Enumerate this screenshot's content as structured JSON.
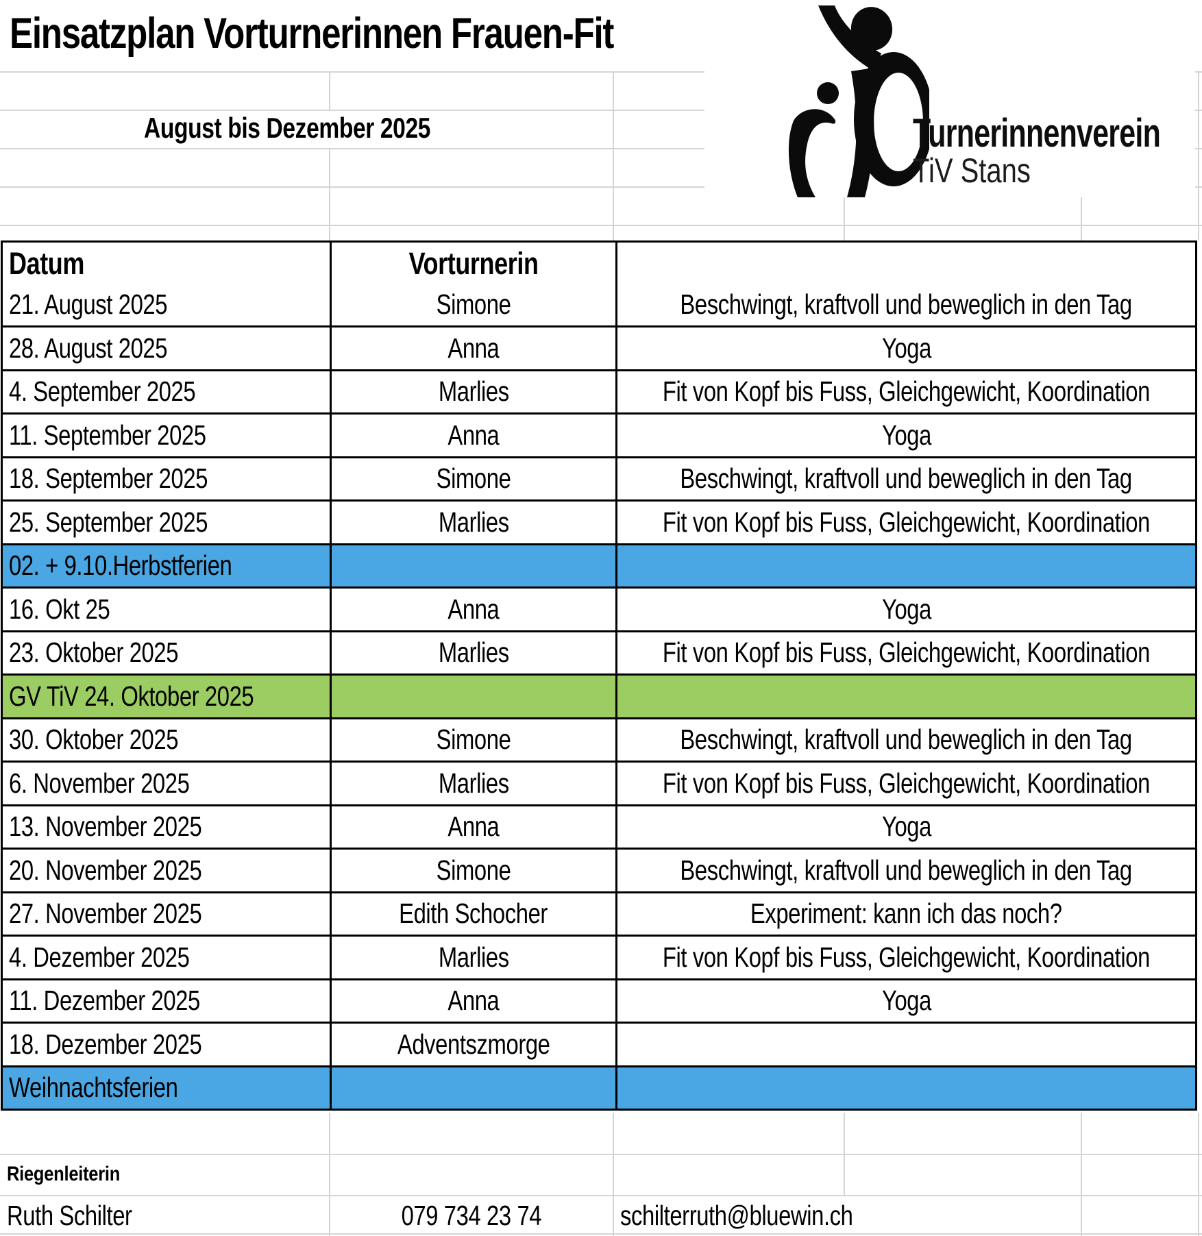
{
  "title": "Einsatzplan Vorturnerinnen Frauen-Fit",
  "subtitle": "August bis Dezember 2025",
  "logo": {
    "org": "Turnerinnenverein",
    "sub": "TiV Stans"
  },
  "table": {
    "headers": {
      "date": "Datum",
      "instructor": "Vorturnerin",
      "program": ""
    },
    "rows": [
      {
        "type": "normal",
        "date": "21. August 2025",
        "instructor": "Simone",
        "program": "Beschwingt, kraftvoll und beweglich in den Tag"
      },
      {
        "type": "normal",
        "date": "28. August 2025",
        "instructor": "Anna",
        "program": "Yoga"
      },
      {
        "type": "normal",
        "date": "4. September 2025",
        "instructor": "Marlies",
        "program": "Fit von Kopf bis Fuss, Gleichgewicht, Koordination"
      },
      {
        "type": "normal",
        "date": "11. September 2025",
        "instructor": "Anna",
        "program": "Yoga"
      },
      {
        "type": "normal",
        "date": "18. September 2025",
        "instructor": "Simone",
        "program": "Beschwingt, kraftvoll und beweglich in den Tag"
      },
      {
        "type": "normal",
        "date": "25. September 2025",
        "instructor": "Marlies",
        "program": "Fit von Kopf bis Fuss, Gleichgewicht, Koordination"
      },
      {
        "type": "holiday",
        "date": "02. + 9.10.Herbstferien",
        "instructor": "",
        "program": ""
      },
      {
        "type": "normal",
        "date": "16. Okt 25",
        "instructor": "Anna",
        "program": "Yoga"
      },
      {
        "type": "normal",
        "date": "23. Oktober 2025",
        "instructor": "Marlies",
        "program": "Fit von Kopf bis Fuss, Gleichgewicht, Koordination"
      },
      {
        "type": "event",
        "date": "GV TiV 24. Oktober 2025",
        "instructor": "",
        "program": ""
      },
      {
        "type": "normal",
        "date": "30. Oktober 2025",
        "instructor": "Simone",
        "program": "Beschwingt, kraftvoll und beweglich in den Tag"
      },
      {
        "type": "normal",
        "date": "6. November 2025",
        "instructor": "Marlies",
        "program": "Fit von Kopf bis Fuss, Gleichgewicht, Koordination"
      },
      {
        "type": "normal",
        "date": "13. November 2025",
        "instructor": "Anna",
        "program": "Yoga"
      },
      {
        "type": "normal",
        "date": "20. November 2025",
        "instructor": "Simone",
        "program": "Beschwingt, kraftvoll und beweglich in den Tag"
      },
      {
        "type": "normal",
        "date": "27. November 2025",
        "instructor": "Edith Schocher",
        "program": "Experiment: kann ich das noch?"
      },
      {
        "type": "normal",
        "date": "4. Dezember 2025",
        "instructor": "Marlies",
        "program": "Fit von Kopf bis Fuss, Gleichgewicht, Koordination"
      },
      {
        "type": "normal",
        "date": "11. Dezember 2025",
        "instructor": "Anna",
        "program": "Yoga"
      },
      {
        "type": "normal",
        "date": "18. Dezember 2025",
        "instructor": "Adventszmorge",
        "program": ""
      },
      {
        "type": "holiday",
        "date": "Weihnachtsferien",
        "instructor": "",
        "program": ""
      }
    ]
  },
  "footer": {
    "role_label": "Riegenleiterin",
    "name": "Ruth Schilter",
    "phone": "079 734 23 74",
    "email": "schilterruth@bluewin.ch"
  },
  "colors": {
    "holiday_blue": "#4BA7E4",
    "event_green": "#9CCD63"
  }
}
